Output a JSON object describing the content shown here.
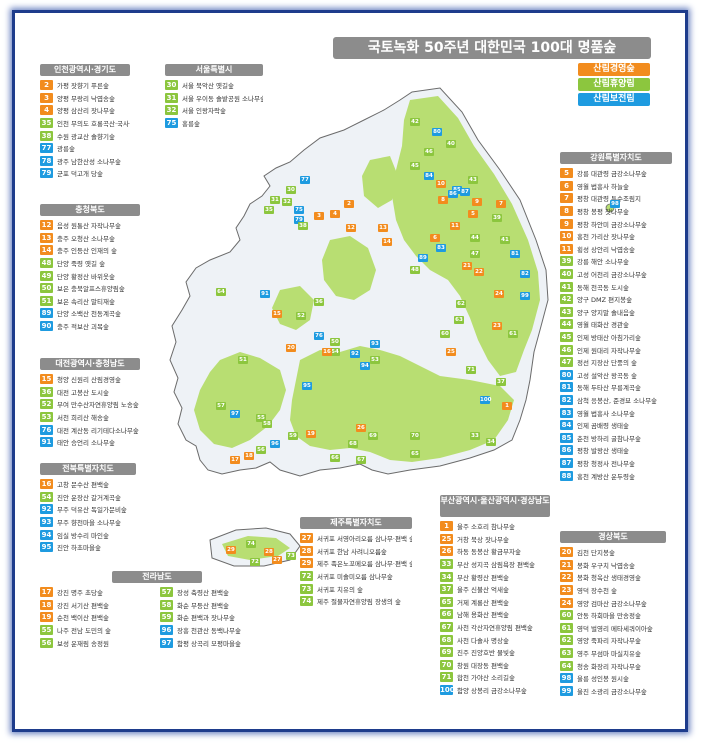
{
  "title": "국토녹화 50주년 대한민국 100대 명품숲",
  "legend": [
    {
      "label": "산림경영숲",
      "color": "#f28c1e"
    },
    {
      "label": "산림휴양림",
      "color": "#8cc63e"
    },
    {
      "label": "산림보전림",
      "color": "#1e9be0"
    }
  ],
  "colors": {
    "orange": "#f28c1e",
    "green": "#8cc63e",
    "blue": "#1e9be0",
    "header": "#8c8c8c",
    "frame": "#1e3c8c",
    "land": "#eef2f6",
    "forest": "#b8de72"
  },
  "panels": [
    {
      "id": "incheon",
      "title": "인천광역시·경기도",
      "items": [
        {
          "n": "2",
          "c": "orange",
          "t": "가평 잣향기 푸른숲"
        },
        {
          "n": "3",
          "c": "orange",
          "t": "양평 무랑리 낙엽송숲"
        },
        {
          "n": "4",
          "c": "orange",
          "t": "양평 삼산리 잣나무숲"
        },
        {
          "n": "35",
          "c": "green",
          "t": "인천 무의도 호룡곡산·국사봉숲"
        },
        {
          "n": "38",
          "c": "green",
          "t": "수원 광교산 솔향기숲"
        },
        {
          "n": "77",
          "c": "blue",
          "t": "광릉숲"
        },
        {
          "n": "78",
          "c": "blue",
          "t": "광주 남한산성 소나무숲"
        },
        {
          "n": "79",
          "c": "blue",
          "t": "군포 덕고개 당숲"
        }
      ]
    },
    {
      "id": "seoul",
      "title": "서울특별시",
      "items": [
        {
          "n": "30",
          "c": "green",
          "t": "서울 북악산 옛길숲"
        },
        {
          "n": "31",
          "c": "green",
          "t": "서울 우이동 솔밭공원 소나무숲"
        },
        {
          "n": "32",
          "c": "green",
          "t": "서울 인왕자락숲"
        },
        {
          "n": "75",
          "c": "blue",
          "t": "홍릉숲"
        }
      ]
    },
    {
      "id": "chungbuk",
      "title": "충청북도",
      "items": [
        {
          "n": "12",
          "c": "orange",
          "t": "음성 원통산 자작나무숲"
        },
        {
          "n": "13",
          "c": "orange",
          "t": "충주 오청산 소나무숲"
        },
        {
          "n": "14",
          "c": "orange",
          "t": "충주 인등산 인재의 숲"
        },
        {
          "n": "48",
          "c": "green",
          "t": "단양 죽령 옛길 숲"
        },
        {
          "n": "49",
          "c": "green",
          "t": "단양 황정산 바위옷숲"
        },
        {
          "n": "50",
          "c": "green",
          "t": "보은 충북알프스휴양림숲"
        },
        {
          "n": "51",
          "c": "green",
          "t": "보은 속리산 말티재숲"
        },
        {
          "n": "89",
          "c": "blue",
          "t": "단양 소백산 천동계곡숲"
        },
        {
          "n": "90",
          "c": "blue",
          "t": "충주 적보산 괴목숲"
        }
      ]
    },
    {
      "id": "daejeon",
      "title": "대전광역시·충청남도",
      "items": [
        {
          "n": "15",
          "c": "orange",
          "t": "청양 신원리 산림경영숲"
        },
        {
          "n": "36",
          "c": "green",
          "t": "대전 고봉산 도시숲"
        },
        {
          "n": "52",
          "c": "green",
          "t": "부여 만수산자연휴양림 노송숲"
        },
        {
          "n": "53",
          "c": "green",
          "t": "서천 희리산 해송숲"
        },
        {
          "n": "76",
          "c": "blue",
          "t": "대전 계산동 리기테다소나무숲"
        },
        {
          "n": "91",
          "c": "blue",
          "t": "태안 승언리 소나무숲"
        }
      ]
    },
    {
      "id": "jeonbuk",
      "title": "전북특별자치도",
      "items": [
        {
          "n": "16",
          "c": "orange",
          "t": "고창 문수산 편백숲"
        },
        {
          "n": "54",
          "c": "green",
          "t": "진안 운장산 갈거계곡숲"
        },
        {
          "n": "92",
          "c": "blue",
          "t": "무주 덕유산 독일가문비숲"
        },
        {
          "n": "93",
          "c": "blue",
          "t": "무주 향천마을 소나무숲"
        },
        {
          "n": "94",
          "c": "blue",
          "t": "임실 방수리 마인숲"
        },
        {
          "n": "95",
          "c": "blue",
          "t": "진안 하초마을숲"
        }
      ]
    },
    {
      "id": "jeonnam",
      "title": "전라남도",
      "items": [
        {
          "n": "17",
          "c": "orange",
          "t": "강진 명주 초당숲"
        },
        {
          "n": "18",
          "c": "orange",
          "t": "강진 서기산 편백숲"
        },
        {
          "n": "19",
          "c": "orange",
          "t": "순천 백이산 편백숲"
        },
        {
          "n": "55",
          "c": "green",
          "t": "나주 전남 도민의 숲"
        },
        {
          "n": "56",
          "c": "green",
          "t": "보성 운재림 송정원"
        },
        {
          "n": "57",
          "c": "green",
          "t": "장성 축령산 편백숲"
        },
        {
          "n": "58",
          "c": "green",
          "t": "화순 무등산 편백숲"
        },
        {
          "n": "59",
          "c": "green",
          "t": "화순 편백과 잣나무숲"
        },
        {
          "n": "96",
          "c": "blue",
          "t": "장흥 천관산 동백나무숲"
        },
        {
          "n": "97",
          "c": "blue",
          "t": "함평 상곡리 모평마을숲"
        }
      ]
    },
    {
      "id": "jeju",
      "title": "제주특별자치도",
      "items": [
        {
          "n": "27",
          "c": "orange",
          "t": "서귀포 서영아리오름 삼나무·편백 숲"
        },
        {
          "n": "28",
          "c": "orange",
          "t": "서귀포 한남 사려니오름숲"
        },
        {
          "n": "29",
          "c": "orange",
          "t": "제주 족은노꼬메오름 삼나무·편백 숲"
        },
        {
          "n": "72",
          "c": "green",
          "t": "서귀포 미솔미오름 삼나무숲"
        },
        {
          "n": "73",
          "c": "green",
          "t": "서귀포 치유의 숲"
        },
        {
          "n": "74",
          "c": "green",
          "t": "제주 절물자연휴양림 장생의 숲"
        }
      ]
    },
    {
      "id": "gangwon",
      "title": "강원특별자치도",
      "items": [
        {
          "n": "5",
          "c": "orange",
          "t": "강릉 대관령 금강소나무숲"
        },
        {
          "n": "6",
          "c": "orange",
          "t": "영월 법흥사 하늘숲"
        },
        {
          "n": "7",
          "c": "orange",
          "t": "평창 대관령 특수조림지"
        },
        {
          "n": "8",
          "c": "orange",
          "t": "평창 봉평 잣나무숲"
        },
        {
          "n": "9",
          "c": "orange",
          "t": "평창 하안미 금강소나무숲"
        },
        {
          "n": "10",
          "c": "orange",
          "t": "홍천 가리산 잣나무숲"
        },
        {
          "n": "11",
          "c": "orange",
          "t": "횡성 상안리 낙엽송숲"
        },
        {
          "n": "39",
          "c": "green",
          "t": "강릉 해안 소나무숲"
        },
        {
          "n": "40",
          "c": "green",
          "t": "고성 어천리 금강소나무숲"
        },
        {
          "n": "41",
          "c": "green",
          "t": "동해 천곡동 도시숲"
        },
        {
          "n": "42",
          "c": "green",
          "t": "양구 DMZ 편지봉숲"
        },
        {
          "n": "43",
          "c": "green",
          "t": "양구 양지말 솔내음숲"
        },
        {
          "n": "44",
          "c": "green",
          "t": "영월 태화산 경관숲"
        },
        {
          "n": "45",
          "c": "green",
          "t": "인제 방태산 아침가리숲"
        },
        {
          "n": "46",
          "c": "green",
          "t": "인제 원대리 자작나무숲"
        },
        {
          "n": "47",
          "c": "green",
          "t": "정선 지장산 단풍의 숲"
        },
        {
          "n": "80",
          "c": "blue",
          "t": "고성 설악산 왕곡동 숲"
        },
        {
          "n": "81",
          "c": "blue",
          "t": "동해 두타산 무릉계곡숲"
        },
        {
          "n": "82",
          "c": "blue",
          "t": "삼척 응봉산, 준경묘 소나무숲"
        },
        {
          "n": "83",
          "c": "blue",
          "t": "영월 법흥사 소나무숲"
        },
        {
          "n": "84",
          "c": "blue",
          "t": "인제 곰배령 생태숲"
        },
        {
          "n": "85",
          "c": "blue",
          "t": "춘천 방하리 굴참나무숲"
        },
        {
          "n": "86",
          "c": "blue",
          "t": "평창 발왕산 생태숲"
        },
        {
          "n": "87",
          "c": "blue",
          "t": "평창 청정사 전나무숲"
        },
        {
          "n": "88",
          "c": "blue",
          "t": "홍천 계방산 운두령숲"
        }
      ]
    },
    {
      "id": "busan",
      "title": "부산광역시·울산광역시·경상남도",
      "items": [
        {
          "n": "1",
          "c": "orange",
          "t": "울주 소호리 참나무숲"
        },
        {
          "n": "25",
          "c": "orange",
          "t": "거창 북상 잣나무숲"
        },
        {
          "n": "26",
          "c": "orange",
          "t": "하동 동봉산 황금부자숲"
        },
        {
          "n": "33",
          "c": "green",
          "t": "부산 성지곡 삼림욕장 편백숲"
        },
        {
          "n": "34",
          "c": "green",
          "t": "부산 황령산 편백숲"
        },
        {
          "n": "37",
          "c": "green",
          "t": "울주 신불산 억새숲"
        },
        {
          "n": "65",
          "c": "green",
          "t": "거제 계룡산 편백숲"
        },
        {
          "n": "66",
          "c": "green",
          "t": "남해 용화산 편백숲"
        },
        {
          "n": "67",
          "c": "green",
          "t": "사천 각산자연휴양림 편백숲"
        },
        {
          "n": "68",
          "c": "green",
          "t": "사천 다솔사 명상숲"
        },
        {
          "n": "69",
          "c": "green",
          "t": "진주 진양호반 물빛숲"
        },
        {
          "n": "70",
          "c": "green",
          "t": "창원 대장동 편백숲"
        },
        {
          "n": "71",
          "c": "green",
          "t": "합천 가야산 소리길숲"
        },
        {
          "n": "100",
          "c": "blue",
          "t": "함양 상봉리 금강소나무숲"
        }
      ]
    },
    {
      "id": "gyeongbuk",
      "title": "경상북도",
      "items": [
        {
          "n": "20",
          "c": "orange",
          "t": "김천 단지봉숲"
        },
        {
          "n": "21",
          "c": "orange",
          "t": "봉화 우구치 낙엽송숲"
        },
        {
          "n": "22",
          "c": "orange",
          "t": "봉화 청옥산 생태경영숲"
        },
        {
          "n": "23",
          "c": "orange",
          "t": "영덕 장수천 숲"
        },
        {
          "n": "24",
          "c": "orange",
          "t": "영양 검마산 금강소나무숲"
        },
        {
          "n": "60",
          "c": "green",
          "t": "안동 하회마을 만송정숲"
        },
        {
          "n": "61",
          "c": "green",
          "t": "영덕 벌영리 메타세쿼이아숲"
        },
        {
          "n": "62",
          "c": "green",
          "t": "영양 죽파리 자작나무숲"
        },
        {
          "n": "63",
          "c": "green",
          "t": "영주 무섬마 마실치유숲"
        },
        {
          "n": "64",
          "c": "green",
          "t": "청송 화장리 자작나무숲"
        },
        {
          "n": "98",
          "c": "blue",
          "t": "울릉 성인봉 원시숲"
        },
        {
          "n": "99",
          "c": "blue",
          "t": "울진 소광리 금강소나무숲"
        }
      ]
    }
  ],
  "markers": [
    {
      "n": "42",
      "c": "green"
    },
    {
      "n": "80",
      "c": "blue"
    },
    {
      "n": "40",
      "c": "green"
    },
    {
      "n": "46",
      "c": "green"
    },
    {
      "n": "45",
      "c": "green"
    },
    {
      "n": "84",
      "c": "blue"
    },
    {
      "n": "10",
      "c": "orange"
    },
    {
      "n": "85",
      "c": "blue"
    },
    {
      "n": "43",
      "c": "green"
    },
    {
      "n": "2",
      "c": "orange"
    },
    {
      "n": "77",
      "c": "blue"
    },
    {
      "n": "30",
      "c": "green"
    },
    {
      "n": "31",
      "c": "green"
    },
    {
      "n": "32",
      "c": "green"
    },
    {
      "n": "35",
      "c": "green"
    },
    {
      "n": "75",
      "c": "blue"
    },
    {
      "n": "79",
      "c": "blue"
    },
    {
      "n": "38",
      "c": "green"
    },
    {
      "n": "3",
      "c": "orange"
    },
    {
      "n": "4",
      "c": "orange"
    },
    {
      "n": "5",
      "c": "orange"
    },
    {
      "n": "8",
      "c": "orange"
    },
    {
      "n": "86",
      "c": "blue"
    },
    {
      "n": "87",
      "c": "blue"
    },
    {
      "n": "9",
      "c": "orange"
    },
    {
      "n": "7",
      "c": "orange"
    },
    {
      "n": "39",
      "c": "green"
    },
    {
      "n": "11",
      "c": "orange"
    },
    {
      "n": "12",
      "c": "orange"
    },
    {
      "n": "13",
      "c": "orange"
    },
    {
      "n": "14",
      "c": "orange"
    },
    {
      "n": "6",
      "c": "orange"
    },
    {
      "n": "83",
      "c": "blue"
    },
    {
      "n": "44",
      "c": "green"
    },
    {
      "n": "47",
      "c": "green"
    },
    {
      "n": "41",
      "c": "green"
    },
    {
      "n": "81",
      "c": "blue"
    },
    {
      "n": "82",
      "c": "blue"
    },
    {
      "n": "89",
      "c": "blue"
    },
    {
      "n": "48",
      "c": "green"
    },
    {
      "n": "21",
      "c": "orange"
    },
    {
      "n": "22",
      "c": "orange"
    },
    {
      "n": "99",
      "c": "blue"
    },
    {
      "n": "62",
      "c": "green"
    },
    {
      "n": "24",
      "c": "orange"
    },
    {
      "n": "63",
      "c": "green"
    },
    {
      "n": "60",
      "c": "green"
    },
    {
      "n": "23",
      "c": "orange"
    },
    {
      "n": "61",
      "c": "green"
    },
    {
      "n": "64",
      "c": "green"
    },
    {
      "n": "91",
      "c": "blue"
    },
    {
      "n": "15",
      "c": "orange"
    },
    {
      "n": "52",
      "c": "green"
    },
    {
      "n": "36",
      "c": "green"
    },
    {
      "n": "76",
      "c": "blue"
    },
    {
      "n": "50",
      "c": "green"
    },
    {
      "n": "51",
      "c": "green"
    },
    {
      "n": "53",
      "c": "green"
    },
    {
      "n": "20",
      "c": "orange"
    },
    {
      "n": "54",
      "c": "green"
    },
    {
      "n": "92",
      "c": "blue"
    },
    {
      "n": "93",
      "c": "blue"
    },
    {
      "n": "94",
      "c": "blue"
    },
    {
      "n": "95",
      "c": "blue"
    },
    {
      "n": "16",
      "c": "orange"
    },
    {
      "n": "25",
      "c": "orange"
    },
    {
      "n": "71",
      "c": "green"
    },
    {
      "n": "100",
      "c": "blue"
    },
    {
      "n": "37",
      "c": "green"
    },
    {
      "n": "1",
      "c": "orange"
    },
    {
      "n": "57",
      "c": "green"
    },
    {
      "n": "97",
      "c": "blue"
    },
    {
      "n": "55",
      "c": "green"
    },
    {
      "n": "58",
      "c": "green"
    },
    {
      "n": "59",
      "c": "green"
    },
    {
      "n": "19",
      "c": "orange"
    },
    {
      "n": "26",
      "c": "orange"
    },
    {
      "n": "68",
      "c": "green"
    },
    {
      "n": "69",
      "c": "green"
    },
    {
      "n": "70",
      "c": "green"
    },
    {
      "n": "33",
      "c": "green"
    },
    {
      "n": "34",
      "c": "green"
    },
    {
      "n": "56",
      "c": "green"
    },
    {
      "n": "96",
      "c": "blue"
    },
    {
      "n": "18",
      "c": "orange"
    },
    {
      "n": "17",
      "c": "orange"
    },
    {
      "n": "66",
      "c": "green"
    },
    {
      "n": "67",
      "c": "green"
    },
    {
      "n": "65",
      "c": "green"
    },
    {
      "n": "29",
      "c": "orange"
    },
    {
      "n": "74",
      "c": "green"
    },
    {
      "n": "28",
      "c": "orange"
    },
    {
      "n": "27",
      "c": "orange"
    },
    {
      "n": "72",
      "c": "green"
    },
    {
      "n": "73",
      "c": "green"
    },
    {
      "n": "98",
      "c": "blue"
    }
  ]
}
